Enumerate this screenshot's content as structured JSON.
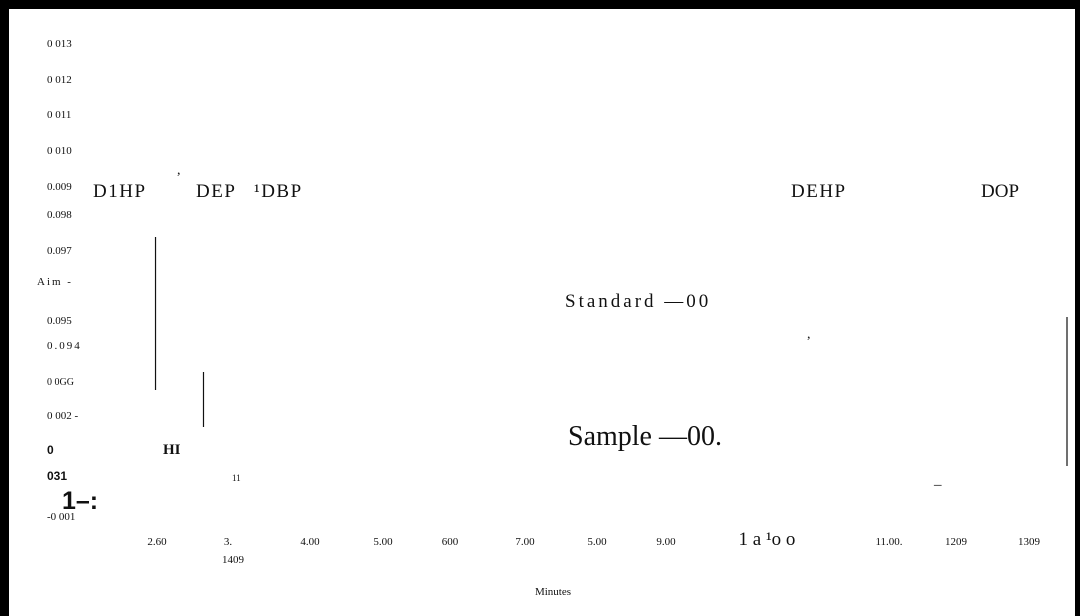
{
  "chart_data": {
    "type": "line",
    "title": "",
    "xlabel": "Minutes",
    "ylabel": "",
    "grid": false,
    "legend": "none",
    "y_tick_labels": [
      "0 013",
      "0 012",
      "0 011",
      "0 010",
      "0.009",
      "0.098",
      "0.097",
      "Aim -",
      "0.095",
      "0.094",
      "0 0GG",
      "0 002 -",
      "0",
      "031",
      "-0 001"
    ],
    "x_tick_labels": [
      "2.60",
      "3.",
      "4.00",
      "5.00",
      "600",
      "7.00",
      "5.00",
      "9.00",
      "1  a  ¹o  o",
      "11.00.",
      "1209",
      "1309"
    ],
    "x_tick_label_extra": "1409",
    "peak_labels": [
      "D1HP",
      "DEP",
      "¹DBP",
      "DEHP",
      "DOP"
    ],
    "series": [
      {
        "name": "Standard —00",
        "peaks": []
      },
      {
        "name": "Sample —00.",
        "peaks": []
      }
    ],
    "annotations": [
      ",",
      ",",
      "HI",
      "11",
      "1–:",
      "_"
    ],
    "peak_marks": [
      {
        "x": 2.58,
        "y_top": 0.0972,
        "y_bottom": 0.0946
      },
      {
        "x": 3.23,
        "y_top": 0.0943,
        "y_bottom": 0.0023
      },
      {
        "x": 13.5,
        "y_top": 0.0955,
        "y_bottom": 0.0017
      }
    ],
    "colors": {
      "ink": "#111111",
      "frame": "#000000",
      "background": "#ffffff"
    }
  }
}
